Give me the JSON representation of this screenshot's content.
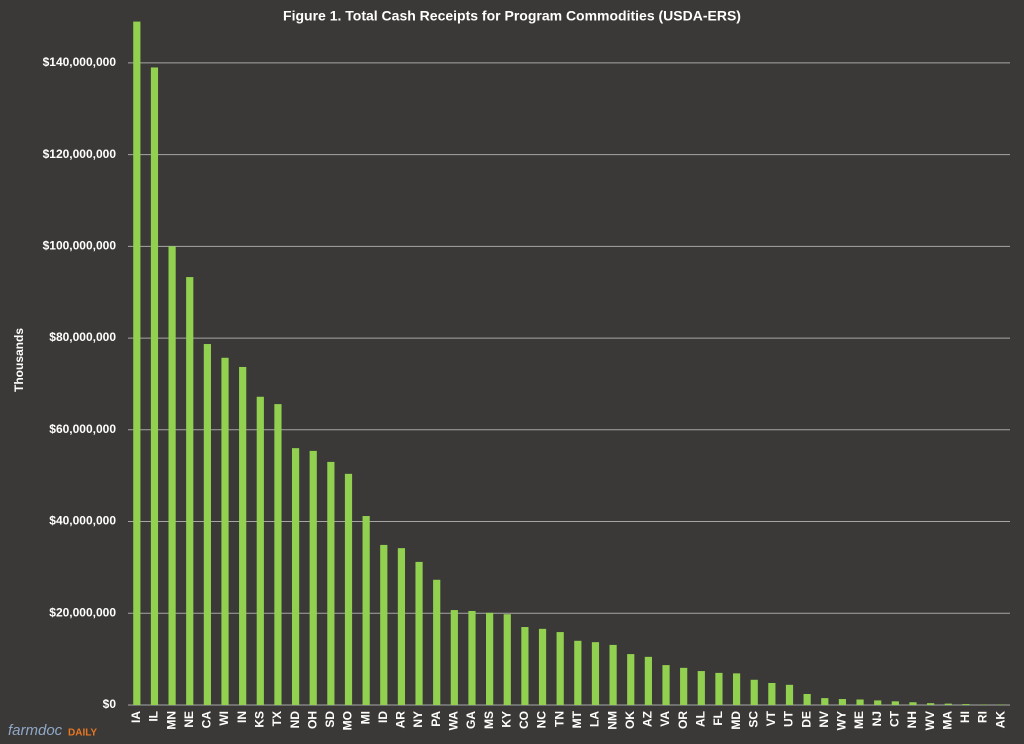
{
  "chart_data": {
    "type": "bar",
    "title": "Figure  1. Total Cash Receipts for Program Commodities (USDA-ERS)",
    "y_label": "Thousands",
    "categories": [
      "IA",
      "IL",
      "MN",
      "NE",
      "CA",
      "WI",
      "IN",
      "KS",
      "TX",
      "ND",
      "OH",
      "SD",
      "MO",
      "MI",
      "ID",
      "AR",
      "NY",
      "PA",
      "WA",
      "GA",
      "MS",
      "KY",
      "CO",
      "NC",
      "TN",
      "MT",
      "LA",
      "NM",
      "OK",
      "AZ",
      "VA",
      "OR",
      "AL",
      "FL",
      "MD",
      "SC",
      "VT",
      "UT",
      "DE",
      "NV",
      "WY",
      "ME",
      "NJ",
      "CT",
      "NH",
      "WV",
      "MA",
      "HI",
      "RI",
      "AK"
    ],
    "values": [
      149000000,
      139000000,
      100000000,
      93300000,
      78700000,
      75700000,
      73700000,
      67200000,
      65600000,
      56000000,
      55400000,
      53000000,
      50400000,
      41200000,
      34900000,
      34200000,
      31200000,
      27300000,
      20700000,
      20500000,
      20100000,
      19800000,
      17000000,
      16600000,
      15900000,
      14000000,
      13700000,
      13100000,
      11100000,
      10500000,
      8700000,
      8100000,
      7400000,
      7000000,
      6900000,
      5500000,
      4800000,
      4400000,
      2400000,
      1500000,
      1300000,
      1200000,
      1000000,
      800000,
      600000,
      400000,
      300000,
      200000,
      100000,
      100000
    ],
    "color": "#92d050",
    "ylim": [
      0,
      150000000
    ],
    "yticks": [
      {
        "value": 0,
        "label": "$0"
      },
      {
        "value": 20000000,
        "label": "$20,000,000"
      },
      {
        "value": 40000000,
        "label": "$40,000,000"
      },
      {
        "value": 60000000,
        "label": "$60,000,000"
      },
      {
        "value": 80000000,
        "label": "$80,000,000"
      },
      {
        "value": 100000000,
        "label": "$100,000,000"
      },
      {
        "value": 120000000,
        "label": "$120,000,000"
      },
      {
        "value": 140000000,
        "label": "$140,000,000"
      }
    ],
    "grid": true
  },
  "branding": {
    "name": "farmdoc",
    "suffix": "DAILY"
  }
}
